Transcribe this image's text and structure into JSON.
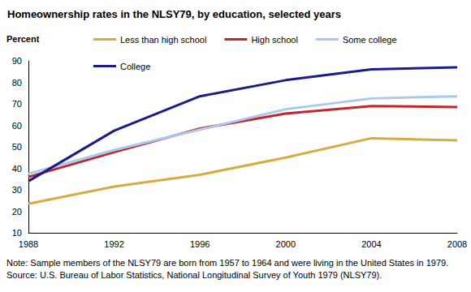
{
  "chart_data": {
    "type": "line",
    "title": "Homeownership rates in the NLSY79, by education, selected years",
    "y_label": "Percent",
    "x": [
      1988,
      1992,
      1996,
      2000,
      2004,
      2008
    ],
    "xlim": [
      1988,
      2008
    ],
    "xticks": [
      1988,
      1992,
      1996,
      2000,
      2004,
      2008
    ],
    "ylim": [
      10,
      90
    ],
    "yticks": [
      10,
      20,
      30,
      40,
      50,
      60,
      70,
      80,
      90
    ],
    "grid": false,
    "legend": "top",
    "series": [
      {
        "name": "Less than high school",
        "color": "#d9ab3f",
        "values": [
          23.5,
          31.5,
          37,
          45,
          54,
          53
        ]
      },
      {
        "name": "High school",
        "color": "#c1272d",
        "values": [
          36,
          47.5,
          58.5,
          65.5,
          69,
          68.5
        ]
      },
      {
        "name": "Some college",
        "color": "#a9c9f0",
        "values": [
          37.5,
          48.5,
          58,
          67.5,
          72.5,
          73.5
        ]
      },
      {
        "name": "College",
        "color": "#1b1b8a",
        "values": [
          34,
          57.5,
          73.5,
          81,
          86,
          87
        ]
      }
    ],
    "notes": [
      "Note: Sample members of the NLSY79 are born from 1957 to 1964 and were living in the United States in 1979.",
      "Source: U.S. Bureau of Labor Statistics, National Longitudinal Survey of Youth 1979 (NLSY79)."
    ]
  }
}
